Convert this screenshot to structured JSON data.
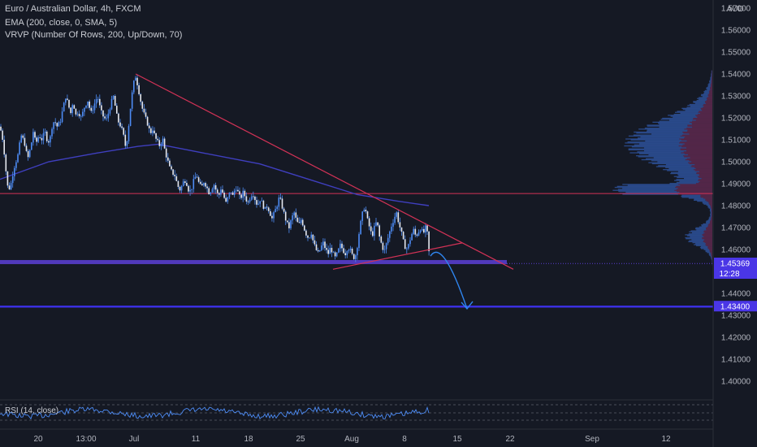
{
  "legend": {
    "title": "Euro / Australian Dollar, 4h, FXCM",
    "ema": "EMA (200, close, 0, SMA, 5)",
    "vrvp": "VRVP (Number Of Rows, 200, Up/Down, 70)",
    "rsi": "RSI (14, close)"
  },
  "colors": {
    "background": "#151924",
    "candle": "#4d8cf5",
    "ema": "#3f3fbf",
    "trendline": "#d23256",
    "support_zone": "#5b3fd6",
    "target_line": "#3b2fe0",
    "projection_arrow": "#2f86f0",
    "volume_profile": "#3a6fd8",
    "rsi_line": "#4d8cf5",
    "price_badge": "#4a36e6"
  },
  "chart_data": {
    "type": "candlestick",
    "title": "Euro / Australian Dollar, 4h, FXCM",
    "ylabel": "AUD",
    "ylim": [
      1.395,
      1.565
    ],
    "yticks": [
      "1.57000",
      "1.56000",
      "1.55000",
      "1.54000",
      "1.53000",
      "1.52000",
      "1.51000",
      "1.50000",
      "1.49000",
      "1.48000",
      "1.47000",
      "1.46000",
      "1.44000",
      "1.43000",
      "1.42000",
      "1.41000",
      "1.40000"
    ],
    "xticks": [
      "20",
      "13:00",
      "Jul",
      "11",
      "18",
      "25",
      "Aug",
      "8",
      "15",
      "22",
      "Sep",
      "12"
    ],
    "price_path": [
      [
        0,
        1.516
      ],
      [
        4,
        1.509
      ],
      [
        8,
        1.493
      ],
      [
        10,
        1.487
      ],
      [
        13,
        1.489
      ],
      [
        17,
        1.497
      ],
      [
        22,
        1.503
      ],
      [
        26,
        1.512
      ],
      [
        30,
        1.509
      ],
      [
        34,
        1.501
      ],
      [
        38,
        1.507
      ],
      [
        41,
        1.514
      ],
      [
        44,
        1.508
      ],
      [
        48,
        1.512
      ],
      [
        52,
        1.51
      ],
      [
        55,
        1.514
      ],
      [
        58,
        1.51
      ],
      [
        61,
        1.509
      ],
      [
        64,
        1.516
      ],
      [
        67,
        1.519
      ],
      [
        70,
        1.516
      ],
      [
        74,
        1.518
      ],
      [
        78,
        1.525
      ],
      [
        81,
        1.53
      ],
      [
        84,
        1.526
      ],
      [
        87,
        1.522
      ],
      [
        90,
        1.528
      ],
      [
        93,
        1.521
      ],
      [
        96,
        1.523
      ],
      [
        100,
        1.52
      ],
      [
        104,
        1.525
      ],
      [
        108,
        1.528
      ],
      [
        112,
        1.522
      ],
      [
        116,
        1.526
      ],
      [
        120,
        1.53
      ],
      [
        124,
        1.523
      ],
      [
        128,
        1.52
      ],
      [
        131,
        1.519
      ],
      [
        134,
        1.523
      ],
      [
        137,
        1.527
      ],
      [
        140,
        1.53
      ],
      [
        143,
        1.522
      ],
      [
        146,
        1.518
      ],
      [
        149,
        1.516
      ],
      [
        152,
        1.512
      ],
      [
        155,
        1.506
      ],
      [
        158,
        1.515
      ],
      [
        161,
        1.526
      ],
      [
        164,
        1.535
      ],
      [
        167,
        1.539
      ],
      [
        170,
        1.534
      ],
      [
        173,
        1.528
      ],
      [
        176,
        1.523
      ],
      [
        179,
        1.52
      ],
      [
        182,
        1.517
      ],
      [
        185,
        1.513
      ],
      [
        188,
        1.515
      ],
      [
        191,
        1.511
      ],
      [
        194,
        1.509
      ],
      [
        197,
        1.507
      ],
      [
        200,
        1.511
      ],
      [
        203,
        1.505
      ],
      [
        206,
        1.501
      ],
      [
        209,
        1.497
      ],
      [
        212,
        1.495
      ],
      [
        215,
        1.494
      ],
      [
        218,
        1.49
      ],
      [
        221,
        1.487
      ],
      [
        224,
        1.489
      ],
      [
        227,
        1.492
      ],
      [
        230,
        1.49
      ],
      [
        233,
        1.486
      ],
      [
        236,
        1.488
      ],
      [
        239,
        1.492
      ],
      [
        242,
        1.494
      ],
      [
        245,
        1.49
      ],
      [
        248,
        1.488
      ],
      [
        251,
        1.491
      ],
      [
        254,
        1.489
      ],
      [
        257,
        1.486
      ],
      [
        260,
        1.487
      ],
      [
        263,
        1.49
      ],
      [
        266,
        1.487
      ],
      [
        269,
        1.484
      ],
      [
        272,
        1.488
      ],
      [
        275,
        1.485
      ],
      [
        278,
        1.481
      ],
      [
        281,
        1.484
      ],
      [
        284,
        1.487
      ],
      [
        287,
        1.484
      ],
      [
        290,
        1.489
      ],
      [
        293,
        1.486
      ],
      [
        296,
        1.483
      ],
      [
        299,
        1.486
      ],
      [
        302,
        1.484
      ],
      [
        305,
        1.481
      ],
      [
        308,
        1.484
      ],
      [
        311,
        1.486
      ],
      [
        314,
        1.483
      ],
      [
        317,
        1.48
      ],
      [
        320,
        1.483
      ],
      [
        323,
        1.481
      ],
      [
        326,
        1.478
      ],
      [
        329,
        1.48
      ],
      [
        332,
        1.477
      ],
      [
        335,
        1.474
      ],
      [
        338,
        1.477
      ],
      [
        341,
        1.48
      ],
      [
        344,
        1.484
      ],
      [
        347,
        1.48
      ],
      [
        350,
        1.476
      ],
      [
        353,
        1.472
      ],
      [
        356,
        1.47
      ],
      [
        359,
        1.474
      ],
      [
        362,
        1.477
      ],
      [
        365,
        1.473
      ],
      [
        368,
        1.471
      ],
      [
        371,
        1.474
      ],
      [
        374,
        1.47
      ],
      [
        377,
        1.467
      ],
      [
        380,
        1.465
      ],
      [
        383,
        1.468
      ],
      [
        386,
        1.463
      ],
      [
        389,
        1.46
      ],
      [
        392,
        1.458
      ],
      [
        395,
        1.461
      ],
      [
        398,
        1.463
      ],
      [
        401,
        1.46
      ],
      [
        404,
        1.458
      ],
      [
        407,
        1.461
      ],
      [
        410,
        1.458
      ],
      [
        413,
        1.456
      ],
      [
        416,
        1.459
      ],
      [
        419,
        1.462
      ],
      [
        422,
        1.46
      ],
      [
        425,
        1.458
      ],
      [
        428,
        1.461
      ],
      [
        431,
        1.46
      ],
      [
        434,
        1.457
      ],
      [
        437,
        1.456
      ],
      [
        440,
        1.462
      ],
      [
        443,
        1.47
      ],
      [
        446,
        1.476
      ],
      [
        449,
        1.48
      ],
      [
        452,
        1.474
      ],
      [
        455,
        1.47
      ],
      [
        458,
        1.466
      ],
      [
        461,
        1.47
      ],
      [
        464,
        1.473
      ],
      [
        467,
        1.466
      ],
      [
        470,
        1.462
      ],
      [
        473,
        1.459
      ],
      [
        476,
        1.463
      ],
      [
        479,
        1.467
      ],
      [
        482,
        1.471
      ],
      [
        485,
        1.474
      ],
      [
        488,
        1.477
      ],
      [
        491,
        1.472
      ],
      [
        494,
        1.468
      ],
      [
        497,
        1.463
      ],
      [
        500,
        1.46
      ],
      [
        503,
        1.462
      ],
      [
        506,
        1.466
      ],
      [
        509,
        1.469
      ],
      [
        512,
        1.466
      ],
      [
        515,
        1.468
      ],
      [
        518,
        1.47
      ],
      [
        521,
        1.467
      ],
      [
        524,
        1.47
      ],
      [
        527,
        1.466
      ],
      [
        529,
        1.453
      ]
    ],
    "ema": [
      [
        0,
        1.492
      ],
      [
        60,
        1.5
      ],
      [
        120,
        1.504
      ],
      [
        170,
        1.507
      ],
      [
        195,
        1.508
      ],
      [
        250,
        1.504
      ],
      [
        320,
        1.499
      ],
      [
        380,
        1.492
      ],
      [
        440,
        1.485
      ],
      [
        490,
        1.482
      ],
      [
        528,
        1.48
      ]
    ],
    "support_zone": [
      1.4535,
      1.4552
    ],
    "resistance_level": 1.4855,
    "target_level": 1.434,
    "current_price": "1.45369",
    "countdown": "12:28",
    "target_label": "1.43400",
    "trendline_upper": [
      [
        167,
        1.54
      ],
      [
        632,
        1.451
      ]
    ],
    "trendline_lower": [
      [
        410,
        1.451
      ],
      [
        569,
        1.463
      ]
    ],
    "projection": [
      [
        530,
        1.457
      ],
      [
        545,
        1.461
      ],
      [
        575,
        1.433
      ]
    ]
  }
}
